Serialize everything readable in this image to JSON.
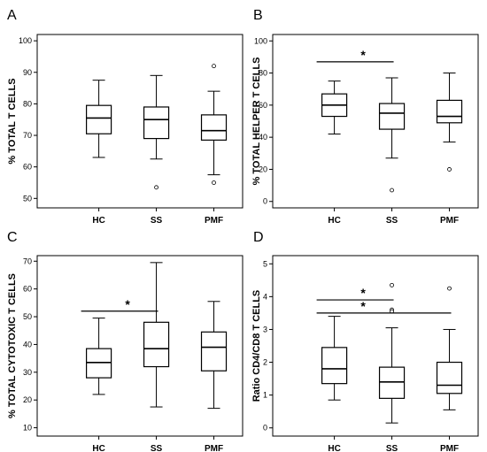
{
  "chart_data": [
    {
      "panel": "A",
      "type": "box",
      "ylabel": "% TOTAL T CELLS",
      "ylim": [
        47,
        102
      ],
      "yticks": [
        50,
        60,
        70,
        80,
        90,
        100
      ],
      "categories": [
        "HC",
        "SS",
        "PMF"
      ],
      "boxes": [
        {
          "whisker_low": 63,
          "q1": 70.5,
          "median": 75.5,
          "q3": 79.5,
          "whisker_high": 87.5,
          "outliers": []
        },
        {
          "whisker_low": 62.5,
          "q1": 69,
          "median": 75,
          "q3": 79,
          "whisker_high": 89,
          "outliers": [
            53.5
          ]
        },
        {
          "whisker_low": 57.5,
          "q1": 68.5,
          "median": 71.5,
          "q3": 76.5,
          "whisker_high": 84,
          "outliers": [
            92,
            55
          ]
        }
      ],
      "significance": []
    },
    {
      "panel": "B",
      "type": "box",
      "ylabel": "% TOTAL HELPER T CELLS",
      "ylim": [
        -4,
        104
      ],
      "yticks": [
        0,
        20,
        40,
        60,
        80,
        100
      ],
      "categories": [
        "HC",
        "SS",
        "PMF"
      ],
      "boxes": [
        {
          "whisker_low": 42,
          "q1": 53,
          "median": 60,
          "q3": 67,
          "whisker_high": 75,
          "outliers": []
        },
        {
          "whisker_low": 27,
          "q1": 45,
          "median": 55,
          "q3": 61,
          "whisker_high": 77,
          "outliers": [
            7
          ]
        },
        {
          "whisker_low": 37,
          "q1": 49,
          "median": 53,
          "q3": 63,
          "whisker_high": 80,
          "outliers": [
            20
          ]
        }
      ],
      "significance": [
        {
          "from": "HC",
          "to": "SS",
          "label": "*",
          "y": 87
        }
      ]
    },
    {
      "panel": "C",
      "type": "box",
      "ylabel": "% TOTAL CYTOTOXIC T CELLS",
      "ylim": [
        7,
        72
      ],
      "yticks": [
        10,
        20,
        30,
        40,
        50,
        60,
        70
      ],
      "categories": [
        "HC",
        "SS",
        "PMF"
      ],
      "boxes": [
        {
          "whisker_low": 22,
          "q1": 28,
          "median": 33.5,
          "q3": 38.5,
          "whisker_high": 49.5,
          "outliers": []
        },
        {
          "whisker_low": 17.5,
          "q1": 32,
          "median": 38.5,
          "q3": 48,
          "whisker_high": 69.5,
          "outliers": []
        },
        {
          "whisker_low": 17,
          "q1": 30.5,
          "median": 39,
          "q3": 44.5,
          "whisker_high": 55.5,
          "outliers": []
        }
      ],
      "significance": [
        {
          "from": "HC",
          "to": "SS",
          "label": "*",
          "y": 52
        }
      ]
    },
    {
      "panel": "D",
      "type": "box",
      "ylabel": "Ratio CD4/CD8 T CELLS",
      "ylim": [
        -0.25,
        5.25
      ],
      "yticks": [
        0,
        1,
        2,
        3,
        4,
        5
      ],
      "categories": [
        "HC",
        "SS",
        "PMF"
      ],
      "boxes": [
        {
          "whisker_low": 0.85,
          "q1": 1.35,
          "median": 1.8,
          "q3": 2.45,
          "whisker_high": 3.4,
          "outliers": []
        },
        {
          "whisker_low": 0.15,
          "q1": 0.9,
          "median": 1.4,
          "q3": 1.85,
          "whisker_high": 3.05,
          "outliers": [
            4.35,
            3.6,
            3.55
          ]
        },
        {
          "whisker_low": 0.55,
          "q1": 1.05,
          "median": 1.3,
          "q3": 2.0,
          "whisker_high": 3.0,
          "outliers": [
            4.25
          ]
        }
      ],
      "significance": [
        {
          "from": "HC",
          "to": "SS",
          "label": "*",
          "y": 3.9
        },
        {
          "from": "HC",
          "to": "PMF",
          "label": "*",
          "y": 3.5
        }
      ]
    }
  ]
}
